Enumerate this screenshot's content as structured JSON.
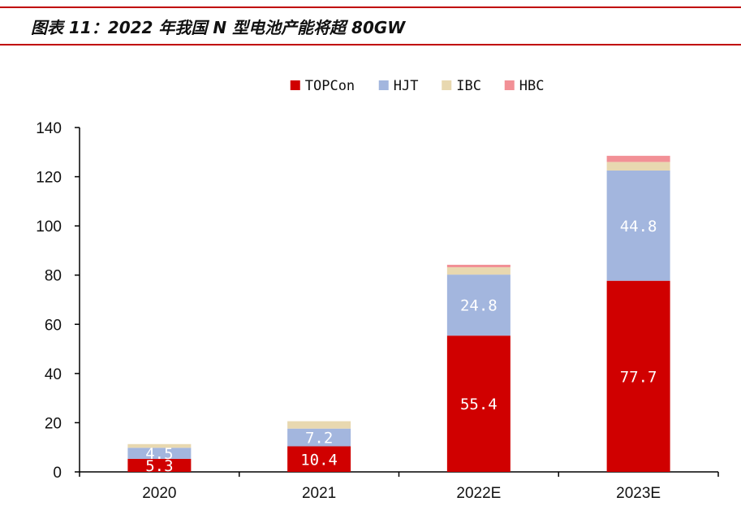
{
  "title": "图表 11：2022 年我国 N 型电池产能将超 80GW",
  "chart_data": {
    "type": "bar",
    "stacked": true,
    "categories": [
      "2020",
      "2021",
      "2022E",
      "2023E"
    ],
    "series": [
      {
        "name": "TOPCon",
        "color": "#d00000",
        "values": [
          5.3,
          10.4,
          55.4,
          77.7
        ],
        "labels": [
          "5.3",
          "10.4",
          "55.4",
          "77.7"
        ]
      },
      {
        "name": "HJT",
        "color": "#a3b6de",
        "values": [
          4.5,
          7.2,
          24.8,
          44.8
        ],
        "labels": [
          "4.5",
          "7.2",
          "24.8",
          "44.8"
        ]
      },
      {
        "name": "IBC",
        "color": "#e8d8b0",
        "values": [
          1.5,
          3.0,
          3.0,
          3.5
        ],
        "labels": [
          "",
          "",
          "",
          ""
        ]
      },
      {
        "name": "HBC",
        "color": "#f29096",
        "values": [
          0.0,
          0.0,
          1.0,
          2.5
        ],
        "labels": [
          "",
          "",
          "",
          ""
        ]
      }
    ],
    "ylim": [
      0,
      140
    ],
    "yticks": [
      0,
      20,
      40,
      60,
      80,
      100,
      120,
      140
    ],
    "legend_position": "top-center",
    "grid": false
  }
}
